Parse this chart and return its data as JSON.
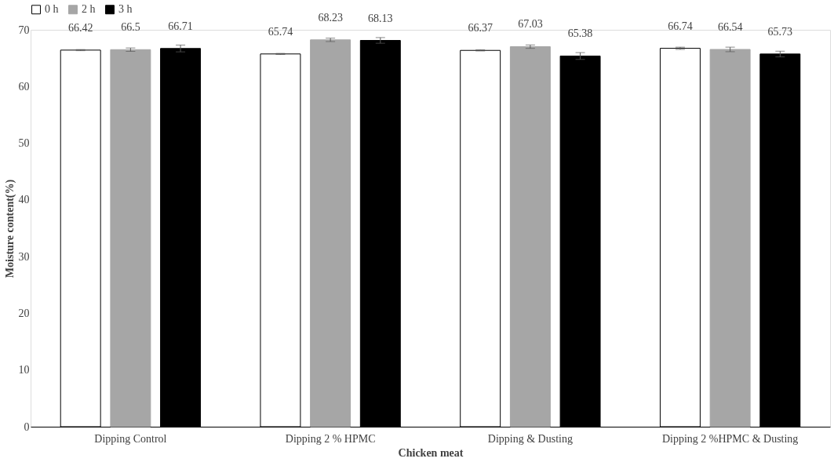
{
  "chart_data": {
    "type": "bar",
    "xlabel": "Chicken meat",
    "ylabel": "Moisture content(%)",
    "categories": [
      "Dipping  Control",
      "Dipping 2 % HPMC",
      "Dipping & Dusting",
      "Dipping  2 %HPMC & Dusting"
    ],
    "series": [
      {
        "name": "0 h",
        "color": "#ffffff",
        "values": [
          66.42,
          65.74,
          66.37,
          66.74
        ],
        "errors": [
          0.1,
          0.1,
          0.1,
          0.2
        ]
      },
      {
        "name": "2 h",
        "color": "#a6a6a6",
        "values": [
          66.5,
          68.23,
          67.03,
          66.54
        ],
        "errors": [
          0.3,
          0.3,
          0.3,
          0.4
        ]
      },
      {
        "name": "3 h",
        "color": "#000000",
        "values": [
          66.71,
          68.13,
          65.38,
          65.73
        ],
        "errors": [
          0.6,
          0.5,
          0.6,
          0.5
        ]
      }
    ],
    "ylim": [
      0,
      70
    ],
    "yticks": [
      0,
      10,
      20,
      30,
      40,
      50,
      60,
      70
    ],
    "grid": false,
    "legend": "top",
    "data_labels": true
  }
}
